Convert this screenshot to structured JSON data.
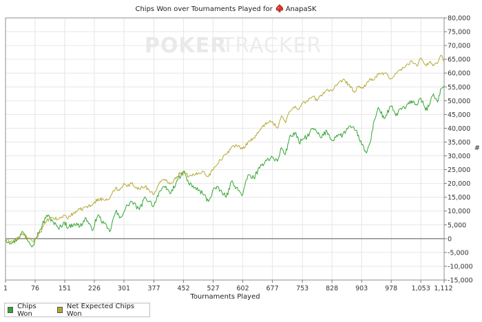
{
  "header": {
    "title_prefix": "Chips Won over Tournaments Played for",
    "player": "AnapaSK"
  },
  "watermark": {
    "part1": "POKER",
    "part2": "TRACKER"
  },
  "chart_data": {
    "type": "line",
    "title": "Chips Won over Tournaments Played for AnapaSK",
    "xlabel": "Tournaments Played",
    "ylabel": "#",
    "xlim": [
      1,
      1112
    ],
    "ylim": [
      -15000,
      80000
    ],
    "x_ticks": [
      1,
      76,
      151,
      226,
      301,
      377,
      452,
      527,
      602,
      677,
      753,
      828,
      903,
      978,
      1053,
      1112
    ],
    "x_tick_labels": [
      "1",
      "76",
      "151",
      "226",
      "301",
      "377",
      "452",
      "527",
      "602",
      "677",
      "753",
      "828",
      "903",
      "978",
      "1,053",
      "1,112"
    ],
    "y_ticks": [
      -15000,
      -10000,
      -5000,
      0,
      5000,
      10000,
      15000,
      20000,
      25000,
      30000,
      35000,
      40000,
      45000,
      50000,
      55000,
      60000,
      65000,
      70000,
      75000,
      80000
    ],
    "y_tick_labels": [
      "-15,000",
      "-10,000",
      "-5,000",
      "0",
      "5,000",
      "10,000",
      "15,000",
      "20,000",
      "25,000",
      "30,000",
      "35,000",
      "40,000",
      "45,000",
      "50,000",
      "55,000",
      "60,000",
      "65,000",
      "70,000",
      "75,000",
      "80,000"
    ],
    "grid": true,
    "legend_position": "bottom-left",
    "series": [
      {
        "name": "Chips Won",
        "color": "#33a533",
        "x": [
          1,
          20,
          35,
          45,
          60,
          70,
          76,
          90,
          105,
          120,
          135,
          150,
          160,
          175,
          190,
          205,
          220,
          235,
          250,
          265,
          280,
          290,
          300,
          310,
          320,
          340,
          355,
          365,
          377,
          390,
          405,
          420,
          435,
          445,
          452,
          465,
          480,
          500,
          515,
          530,
          545,
          560,
          575,
          590,
          602,
          615,
          630,
          645,
          660,
          677,
          690,
          700,
          710,
          720,
          735,
          745,
          753,
          765,
          780,
          790,
          800,
          815,
          828,
          840,
          855,
          870,
          885,
          895,
          903,
          915,
          925,
          935,
          945,
          960,
          978,
          990,
          1000,
          1015,
          1030,
          1045,
          1053,
          1065,
          1075,
          1085,
          1095,
          1105,
          1112
        ],
        "y": [
          -500,
          -1500,
          500,
          2500,
          -1000,
          -2500,
          0,
          3500,
          8500,
          6500,
          3500,
          6000,
          4000,
          5500,
          4500,
          7500,
          3000,
          8500,
          5500,
          2500,
          10000,
          7500,
          9500,
          12000,
          13500,
          10500,
          15000,
          13500,
          12000,
          17000,
          18500,
          16500,
          21000,
          22500,
          24500,
          20000,
          18500,
          16500,
          13500,
          18500,
          17500,
          15000,
          21000,
          17500,
          16000,
          23000,
          22000,
          25500,
          28500,
          29500,
          28000,
          33000,
          30500,
          36500,
          38500,
          34500,
          36000,
          37000,
          40000,
          38500,
          36500,
          39000,
          35500,
          37500,
          37500,
          40500,
          39500,
          37500,
          34000,
          31000,
          35000,
          43000,
          47500,
          43500,
          48000,
          44500,
          47000,
          47500,
          50000,
          48500,
          51000,
          46500,
          48500,
          52500,
          49500,
          54500,
          55500
        ]
      },
      {
        "name": "Net Expected Chips Won",
        "color": "#b3a833",
        "x": [
          1,
          20,
          35,
          45,
          60,
          70,
          76,
          90,
          105,
          120,
          135,
          150,
          160,
          175,
          190,
          205,
          220,
          235,
          250,
          265,
          280,
          290,
          300,
          310,
          320,
          340,
          355,
          365,
          377,
          390,
          405,
          420,
          435,
          445,
          452,
          465,
          480,
          500,
          515,
          530,
          545,
          560,
          575,
          590,
          602,
          615,
          630,
          645,
          660,
          677,
          690,
          700,
          710,
          720,
          735,
          745,
          753,
          765,
          780,
          790,
          800,
          815,
          828,
          840,
          855,
          870,
          885,
          895,
          903,
          915,
          925,
          935,
          945,
          960,
          978,
          990,
          1000,
          1015,
          1030,
          1045,
          1053,
          1065,
          1075,
          1085,
          1095,
          1105,
          1112
        ],
        "y": [
          -500,
          -1000,
          500,
          1500,
          0,
          -1000,
          0,
          2500,
          6500,
          7500,
          7000,
          8500,
          7500,
          9500,
          10500,
          11500,
          12000,
          14500,
          14000,
          14500,
          18500,
          17500,
          20000,
          19000,
          20000,
          18000,
          19000,
          17500,
          16000,
          20000,
          21500,
          20000,
          22500,
          24000,
          24500,
          22500,
          23000,
          24500,
          22500,
          26000,
          28500,
          30500,
          33500,
          33500,
          32500,
          35000,
          36500,
          39000,
          42000,
          42500,
          40000,
          44500,
          42000,
          46000,
          48000,
          47000,
          49000,
          50000,
          51500,
          50000,
          52000,
          54000,
          53500,
          55500,
          57500,
          56000,
          53000,
          55000,
          54500,
          56000,
          58000,
          57500,
          59500,
          60000,
          58000,
          60000,
          61000,
          62500,
          64500,
          62500,
          65500,
          63000,
          64000,
          63000,
          63500,
          66500,
          64500
        ]
      }
    ]
  }
}
